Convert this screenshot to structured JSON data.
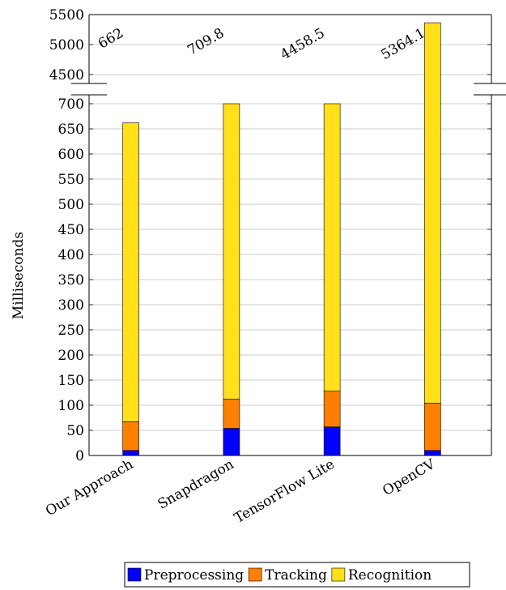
{
  "chart_data": {
    "type": "bar",
    "stacked": true,
    "ylabel": "Milliseconds",
    "categories": [
      "Our Approach",
      "Snapdragon",
      "TensorFlow Lite",
      "OpenCV"
    ],
    "series": [
      {
        "name": "Preprocessing",
        "color": "#0000ff",
        "values": [
          10,
          54,
          57,
          10
        ]
      },
      {
        "name": "Tracking",
        "color": "#ff7f00",
        "values": [
          57,
          58,
          71,
          94
        ]
      },
      {
        "name": "Recognition",
        "color": "#ffe01a",
        "values": [
          595,
          597.8,
          4330.5,
          5260.1
        ]
      }
    ],
    "totals": [
      "662",
      "709.8",
      "4458.5",
      "5364.1"
    ],
    "y_axis_broken": true,
    "ylim_lower": [
      0,
      700
    ],
    "ylim_upper": [
      4500,
      5500
    ],
    "yticks_lower": [
      0,
      50,
      100,
      150,
      200,
      250,
      300,
      350,
      400,
      450,
      500,
      550,
      600,
      650,
      700
    ],
    "yticks_upper": [
      4500,
      5000,
      5500
    ],
    "grid": true,
    "legend_position": "bottom"
  }
}
